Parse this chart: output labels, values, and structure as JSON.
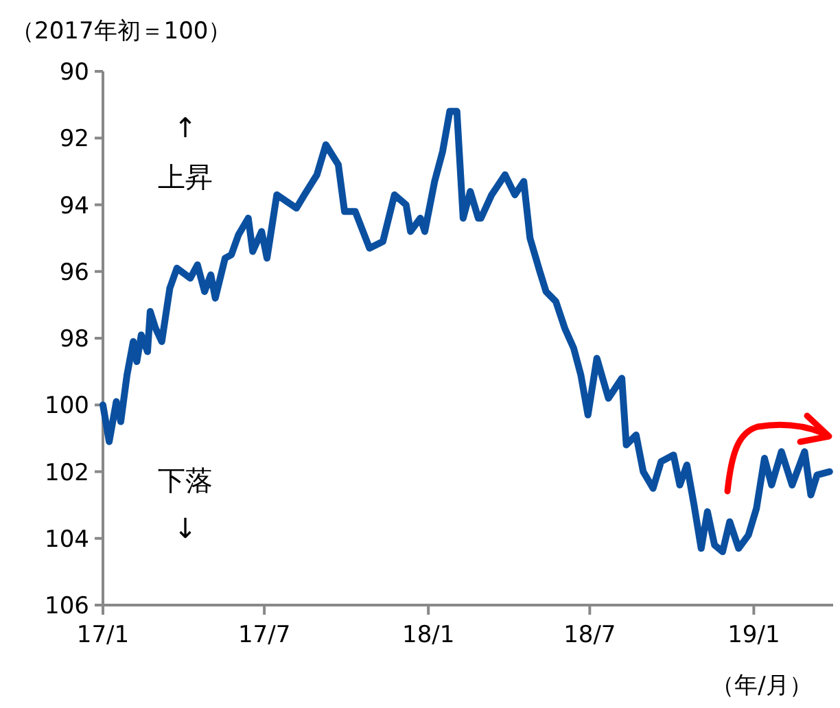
{
  "chart_data": {
    "type": "line",
    "ylabel": "（2017年初＝100）",
    "xlabel": "（年/月）",
    "annotations": [
      "↑",
      "上昇",
      "下落",
      "↓"
    ],
    "color": "#0b50a0",
    "xlim": [
      "2017-01-01",
      "2019-03-31"
    ],
    "ylim": [
      106,
      90
    ],
    "yticks": [
      90,
      92,
      94,
      96,
      98,
      100,
      102,
      104,
      106
    ],
    "xticks": [
      {
        "value": "2017-01-01",
        "label": "17/1"
      },
      {
        "value": "2017-07-01",
        "label": "17/7"
      },
      {
        "value": "2018-01-01",
        "label": "18/1"
      },
      {
        "value": "2018-07-01",
        "label": "18/7"
      },
      {
        "value": "2019-01-01",
        "label": "19/1"
      }
    ],
    "x": [
      "2017-01-01",
      "2017-01-08",
      "2017-01-16",
      "2017-01-21",
      "2017-01-28",
      "2017-02-04",
      "2017-02-08",
      "2017-02-13",
      "2017-02-20",
      "2017-02-23",
      "2017-03-01",
      "2017-03-08",
      "2017-03-17",
      "2017-03-25",
      "2017-04-09",
      "2017-04-17",
      "2017-04-25",
      "2017-05-02",
      "2017-05-07",
      "2017-05-18",
      "2017-05-25",
      "2017-06-02",
      "2017-06-13",
      "2017-06-18",
      "2017-06-28",
      "2017-07-04",
      "2017-07-15",
      "2017-08-06",
      "2017-08-15",
      "2017-08-29",
      "2017-09-08",
      "2017-09-22",
      "2017-09-29",
      "2017-10-11",
      "2017-10-27",
      "2017-11-11",
      "2017-11-24",
      "2017-12-07",
      "2017-12-12",
      "2017-12-23",
      "2017-12-28",
      "2018-01-08",
      "2018-01-17",
      "2018-01-25",
      "2018-02-02",
      "2018-02-09",
      "2018-02-17",
      "2018-02-26",
      "2018-03-01",
      "2018-03-13",
      "2018-03-28",
      "2018-04-08",
      "2018-04-18",
      "2018-04-25",
      "2018-05-06",
      "2018-05-13",
      "2018-05-24",
      "2018-06-03",
      "2018-06-13",
      "2018-06-21",
      "2018-06-29",
      "2018-07-09",
      "2018-07-22",
      "2018-08-06",
      "2018-08-11",
      "2018-08-22",
      "2018-08-30",
      "2018-09-10",
      "2018-09-19",
      "2018-10-03",
      "2018-10-10",
      "2018-10-18",
      "2018-10-26",
      "2018-11-03",
      "2018-11-10",
      "2018-11-18",
      "2018-11-27",
      "2018-12-05",
      "2018-12-15",
      "2018-12-26",
      "2019-01-04",
      "2019-01-13",
      "2019-01-21",
      "2019-02-01",
      "2019-02-13",
      "2019-02-27",
      "2019-03-06",
      "2019-03-13",
      "2019-03-27"
    ],
    "values": [
      100.0,
      101.1,
      99.9,
      100.5,
      99.1,
      98.1,
      98.7,
      97.9,
      98.4,
      97.2,
      97.7,
      98.1,
      96.5,
      95.9,
      96.2,
      95.8,
      96.6,
      96.1,
      96.8,
      95.6,
      95.5,
      94.9,
      94.4,
      95.4,
      94.8,
      95.6,
      93.7,
      94.1,
      93.7,
      93.1,
      92.2,
      92.8,
      94.2,
      94.2,
      95.3,
      95.1,
      93.7,
      94.0,
      94.8,
      94.4,
      94.8,
      93.3,
      92.4,
      91.2,
      91.2,
      94.4,
      93.6,
      94.4,
      94.4,
      93.7,
      93.1,
      93.7,
      93.3,
      95.0,
      96.0,
      96.6,
      96.9,
      97.7,
      98.3,
      99.1,
      100.3,
      98.6,
      99.8,
      99.2,
      101.2,
      100.9,
      102.0,
      102.5,
      101.7,
      101.5,
      102.4,
      101.8,
      103.0,
      104.3,
      103.2,
      104.2,
      104.4,
      103.5,
      104.3,
      103.9,
      103.1,
      101.6,
      102.4,
      101.4,
      102.4,
      101.4,
      102.7,
      102.1,
      102.0
    ]
  }
}
